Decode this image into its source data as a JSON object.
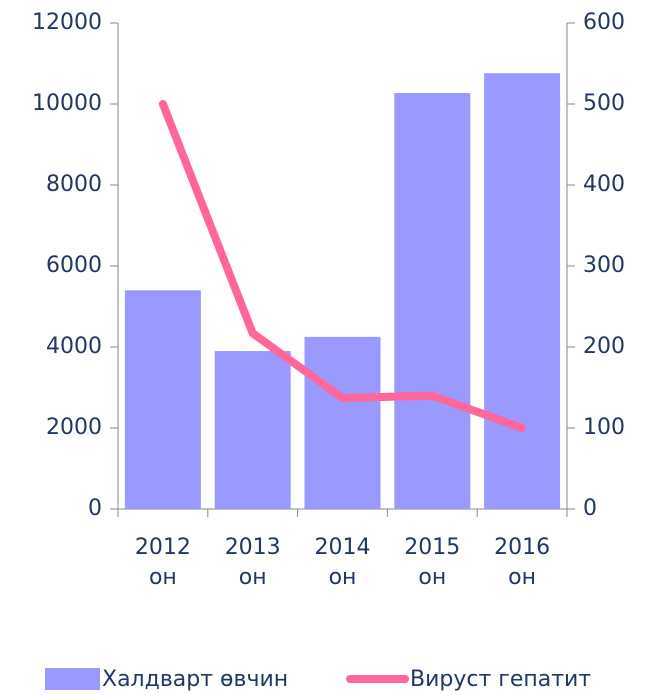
{
  "chart_data": {
    "type": "bar-line",
    "categories": [
      "2012 он",
      "2013 он",
      "2014 он",
      "2015 он",
      "2016 он"
    ],
    "series": [
      {
        "name": "Халдварт өвчин",
        "type": "bar",
        "color": "#9999ff",
        "values": [
          5400,
          3900,
          4250,
          10270,
          10760
        ]
      },
      {
        "name": "Вируст гепатит",
        "type": "line",
        "color": "#ff6699",
        "axis": "y2",
        "values": [
          500,
          217,
          137,
          140,
          100
        ]
      }
    ],
    "ylim": [
      0,
      12000
    ],
    "yticks": [
      0,
      2000,
      4000,
      6000,
      8000,
      10000,
      12000
    ],
    "y2lim": [
      0,
      600
    ],
    "y2ticks": [
      0,
      100,
      200,
      300,
      400,
      500,
      600
    ],
    "legend": "bottom"
  }
}
